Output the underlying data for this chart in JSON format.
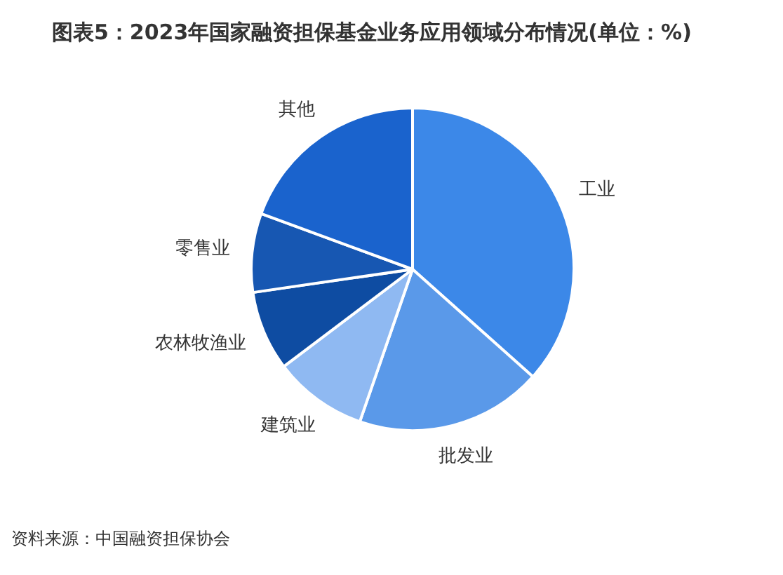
{
  "chart_data": {
    "type": "pie",
    "title": "图表5：2023年国家融资担保基金业务应用领域分布情况(单位：%)",
    "categories": [
      "工业",
      "批发业",
      "建筑业",
      "农林牧渔业",
      "零售业",
      "其他"
    ],
    "values": [
      36.6,
      18.7,
      9.4,
      8.0,
      7.9,
      19.4
    ],
    "colors": [
      "#3c88e8",
      "#5a99e9",
      "#8fb9f2",
      "#0e4ca2",
      "#1757b2",
      "#1a63cd"
    ],
    "annotations": [
      "资料来源：中国融资担保协会"
    ]
  }
}
